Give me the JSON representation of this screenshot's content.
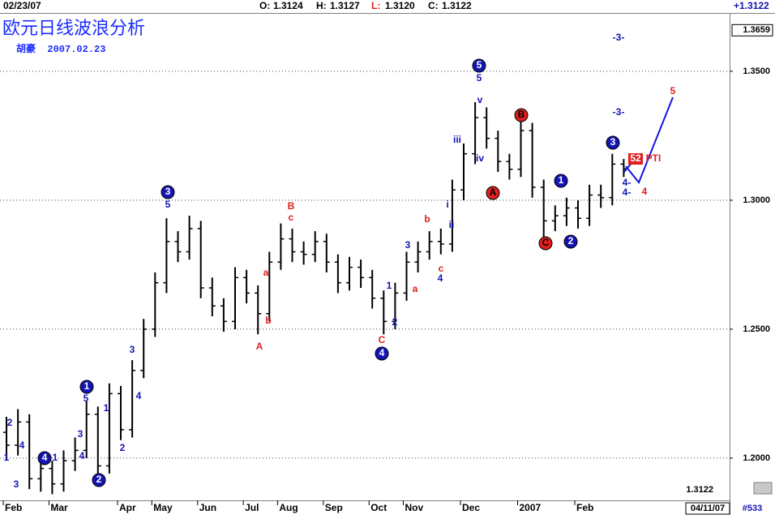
{
  "header": {
    "date": "02/23/07",
    "items": [
      {
        "label": "O:",
        "value": "1.3124",
        "color": "#000000"
      },
      {
        "label": "H:",
        "value": "1.3127",
        "color": "#000000"
      },
      {
        "label": "L:",
        "value": "1.3120",
        "color": "#e01e1e"
      },
      {
        "label": "C:",
        "value": "1.3122",
        "color": "#000000"
      }
    ],
    "change": "+1.3122",
    "end_date": "04/11/07",
    "bar_count": "#533"
  },
  "chart_data": {
    "type": "ohlc",
    "title": "欧元日线波浪分析",
    "subtitle": "胡豪  2007.02.23",
    "color": "#000000",
    "grid": true,
    "categories": [
      "Feb",
      null,
      null,
      null,
      "Mar",
      null,
      null,
      null,
      null,
      null,
      "Apr",
      null,
      null,
      "May",
      null,
      null,
      null,
      "Jun",
      null,
      null,
      null,
      "Jul",
      null,
      null,
      "Aug",
      null,
      null,
      null,
      "Sep",
      null,
      null,
      null,
      "Oct",
      null,
      null,
      "Nov",
      null,
      null,
      null,
      null,
      "Dec",
      null,
      null,
      null,
      null,
      "2007",
      null,
      null,
      null,
      null,
      "Feb",
      null,
      null,
      null,
      null
    ],
    "open": [
      1.21,
      1.205,
      1.214,
      1.192,
      1.196,
      1.19,
      1.199,
      1.203,
      1.217,
      1.197,
      1.225,
      1.211,
      1.234,
      1.25,
      1.268,
      1.284,
      1.28,
      1.289,
      1.266,
      1.259,
      1.253,
      1.27,
      1.264,
      1.256,
      1.276,
      1.285,
      1.28,
      1.279,
      1.284,
      1.276,
      1.268,
      1.274,
      1.27,
      1.262,
      1.253,
      1.264,
      1.276,
      1.28,
      1.284,
      1.283,
      1.304,
      1.318,
      1.332,
      1.324,
      1.315,
      1.312,
      1.327,
      1.305,
      1.292,
      1.294,
      1.297,
      1.293,
      1.302,
      1.301,
      1.314
    ],
    "high": [
      1.216,
      1.219,
      1.217,
      1.2,
      1.199,
      1.203,
      1.208,
      1.222,
      1.22,
      1.229,
      1.228,
      1.238,
      1.254,
      1.272,
      1.293,
      1.288,
      1.294,
      1.292,
      1.27,
      1.262,
      1.274,
      1.273,
      1.267,
      1.28,
      1.291,
      1.289,
      1.284,
      1.288,
      1.287,
      1.279,
      1.278,
      1.277,
      1.273,
      1.265,
      1.268,
      1.28,
      1.284,
      1.288,
      1.289,
      1.308,
      1.322,
      1.338,
      1.336,
      1.327,
      1.318,
      1.331,
      1.33,
      1.308,
      1.298,
      1.301,
      1.3,
      1.306,
      1.306,
      1.318,
      1.316
    ],
    "low": [
      1.199,
      1.201,
      1.188,
      1.187,
      1.186,
      1.187,
      1.195,
      1.2,
      1.193,
      1.194,
      1.207,
      1.208,
      1.231,
      1.247,
      1.264,
      1.276,
      1.277,
      1.262,
      1.255,
      1.249,
      1.25,
      1.26,
      1.248,
      1.253,
      1.273,
      1.276,
      1.275,
      1.276,
      1.272,
      1.264,
      1.265,
      1.266,
      1.258,
      1.248,
      1.25,
      1.261,
      1.272,
      1.277,
      1.279,
      1.28,
      1.3,
      1.314,
      1.32,
      1.311,
      1.308,
      1.309,
      1.301,
      1.282,
      1.288,
      1.29,
      1.289,
      1.29,
      1.297,
      1.298,
      1.309
    ],
    "close": [
      1.205,
      1.214,
      1.192,
      1.196,
      1.19,
      1.199,
      1.203,
      1.217,
      1.197,
      1.225,
      1.211,
      1.234,
      1.25,
      1.268,
      1.284,
      1.28,
      1.289,
      1.266,
      1.259,
      1.253,
      1.27,
      1.264,
      1.256,
      1.276,
      1.285,
      1.28,
      1.279,
      1.284,
      1.276,
      1.268,
      1.274,
      1.27,
      1.262,
      1.253,
      1.264,
      1.276,
      1.28,
      1.284,
      1.283,
      1.304,
      1.318,
      1.332,
      1.324,
      1.315,
      1.312,
      1.327,
      1.305,
      1.292,
      1.294,
      1.297,
      1.293,
      1.302,
      1.301,
      1.314,
      1.3122
    ],
    "ylim": [
      1.1852,
      1.3726
    ],
    "yticks": [
      {
        "value": 1.2,
        "label": "1.2000"
      },
      {
        "value": 1.25,
        "label": "1.2500"
      },
      {
        "value": 1.3,
        "label": "1.3000"
      },
      {
        "value": 1.35,
        "label": "1.3500"
      }
    ],
    "marker": {
      "value": 1.3659,
      "label": "1.3659"
    },
    "last_label": "1.3122",
    "annotations": [
      {
        "text": "2",
        "color": "#1414b4",
        "circle": false
      },
      {
        "text": "1",
        "color": "#1414b4",
        "circle": false
      },
      {
        "text": "3",
        "color": "#1414b4",
        "circle": false
      },
      {
        "text": "4",
        "color": "#1414b4",
        "circle": false
      },
      {
        "text": "4",
        "color": "#1414b4",
        "circle": true
      },
      {
        "text": "1",
        "color": "#1414b4",
        "circle": false
      },
      {
        "text": "2",
        "color": "#1414b4",
        "circle": true
      },
      {
        "text": "4",
        "color": "#1414b4",
        "circle": false
      },
      {
        "text": "3",
        "color": "#1414b4",
        "circle": false
      },
      {
        "text": "1",
        "color": "#1414b4",
        "circle": true
      },
      {
        "text": "5",
        "color": "#1414b4",
        "circle": false
      },
      {
        "text": "1",
        "color": "#1414b4",
        "circle": false
      },
      {
        "text": "2",
        "color": "#1414b4",
        "circle": false
      },
      {
        "text": "3",
        "color": "#1414b4",
        "circle": false
      },
      {
        "text": "4",
        "color": "#1414b4",
        "circle": false
      },
      {
        "text": "3",
        "color": "#1414b4",
        "circle": true
      },
      {
        "text": "5",
        "color": "#1414b4",
        "circle": false
      },
      {
        "text": "B",
        "color": "#e01e1e",
        "circle": false
      },
      {
        "text": "c",
        "color": "#e01e1e",
        "circle": false
      },
      {
        "text": "a",
        "color": "#e01e1e",
        "circle": false
      },
      {
        "text": "b",
        "color": "#e01e1e",
        "circle": false
      },
      {
        "text": "A",
        "color": "#e01e1e",
        "circle": false
      },
      {
        "text": "1",
        "color": "#1414b4",
        "circle": false
      },
      {
        "text": "2",
        "color": "#1414b4",
        "circle": false
      },
      {
        "text": "4",
        "color": "#1414b4",
        "circle": true
      },
      {
        "text": "C",
        "color": "#e01e1e",
        "circle": false
      },
      {
        "text": "a",
        "color": "#e01e1e",
        "circle": false
      },
      {
        "text": "3",
        "color": "#1414b4",
        "circle": false
      },
      {
        "text": "b",
        "color": "#e01e1e",
        "circle": false
      },
      {
        "text": "c",
        "color": "#e01e1e",
        "circle": false
      },
      {
        "text": "4",
        "color": "#1414b4",
        "circle": false
      },
      {
        "text": "i",
        "color": "#1414b4",
        "circle": false
      },
      {
        "text": "ii",
        "color": "#1414b4",
        "circle": false
      },
      {
        "text": "iii",
        "color": "#1414b4",
        "circle": false
      },
      {
        "text": "5",
        "color": "#1414b4",
        "circle": true
      },
      {
        "text": "5",
        "color": "#1414b4",
        "circle": false
      },
      {
        "text": "v",
        "color": "#1414b4",
        "circle": false
      },
      {
        "text": "iv",
        "color": "#1414b4",
        "circle": false
      },
      {
        "text": "A",
        "color": "#e01e1e",
        "circle": true
      },
      {
        "text": "B",
        "color": "#e01e1e",
        "circle": true
      },
      {
        "text": "C",
        "color": "#e01e1e",
        "circle": true
      },
      {
        "text": "1",
        "color": "#1414b4",
        "circle": true
      },
      {
        "text": "2",
        "color": "#1414b4",
        "circle": true
      },
      {
        "text": "3",
        "color": "#1414b4",
        "circle": true
      },
      {
        "text": "-3-",
        "color": "#1414b4",
        "circle": false
      },
      {
        "text": "-3-",
        "color": "#1414b4",
        "circle": false
      },
      {
        "text": "52",
        "color": "#e01e1e",
        "circle": false
      },
      {
        "text": "PTI",
        "color": "#e01e1e",
        "circle": false
      },
      {
        "text": "4-",
        "color": "#1414b4",
        "circle": false
      },
      {
        "text": "4-",
        "color": "#1414b4",
        "circle": false
      },
      {
        "text": "4",
        "color": "#e01e1e",
        "circle": false
      },
      {
        "text": "5",
        "color": "#e01e1e",
        "circle": false
      }
    ]
  }
}
